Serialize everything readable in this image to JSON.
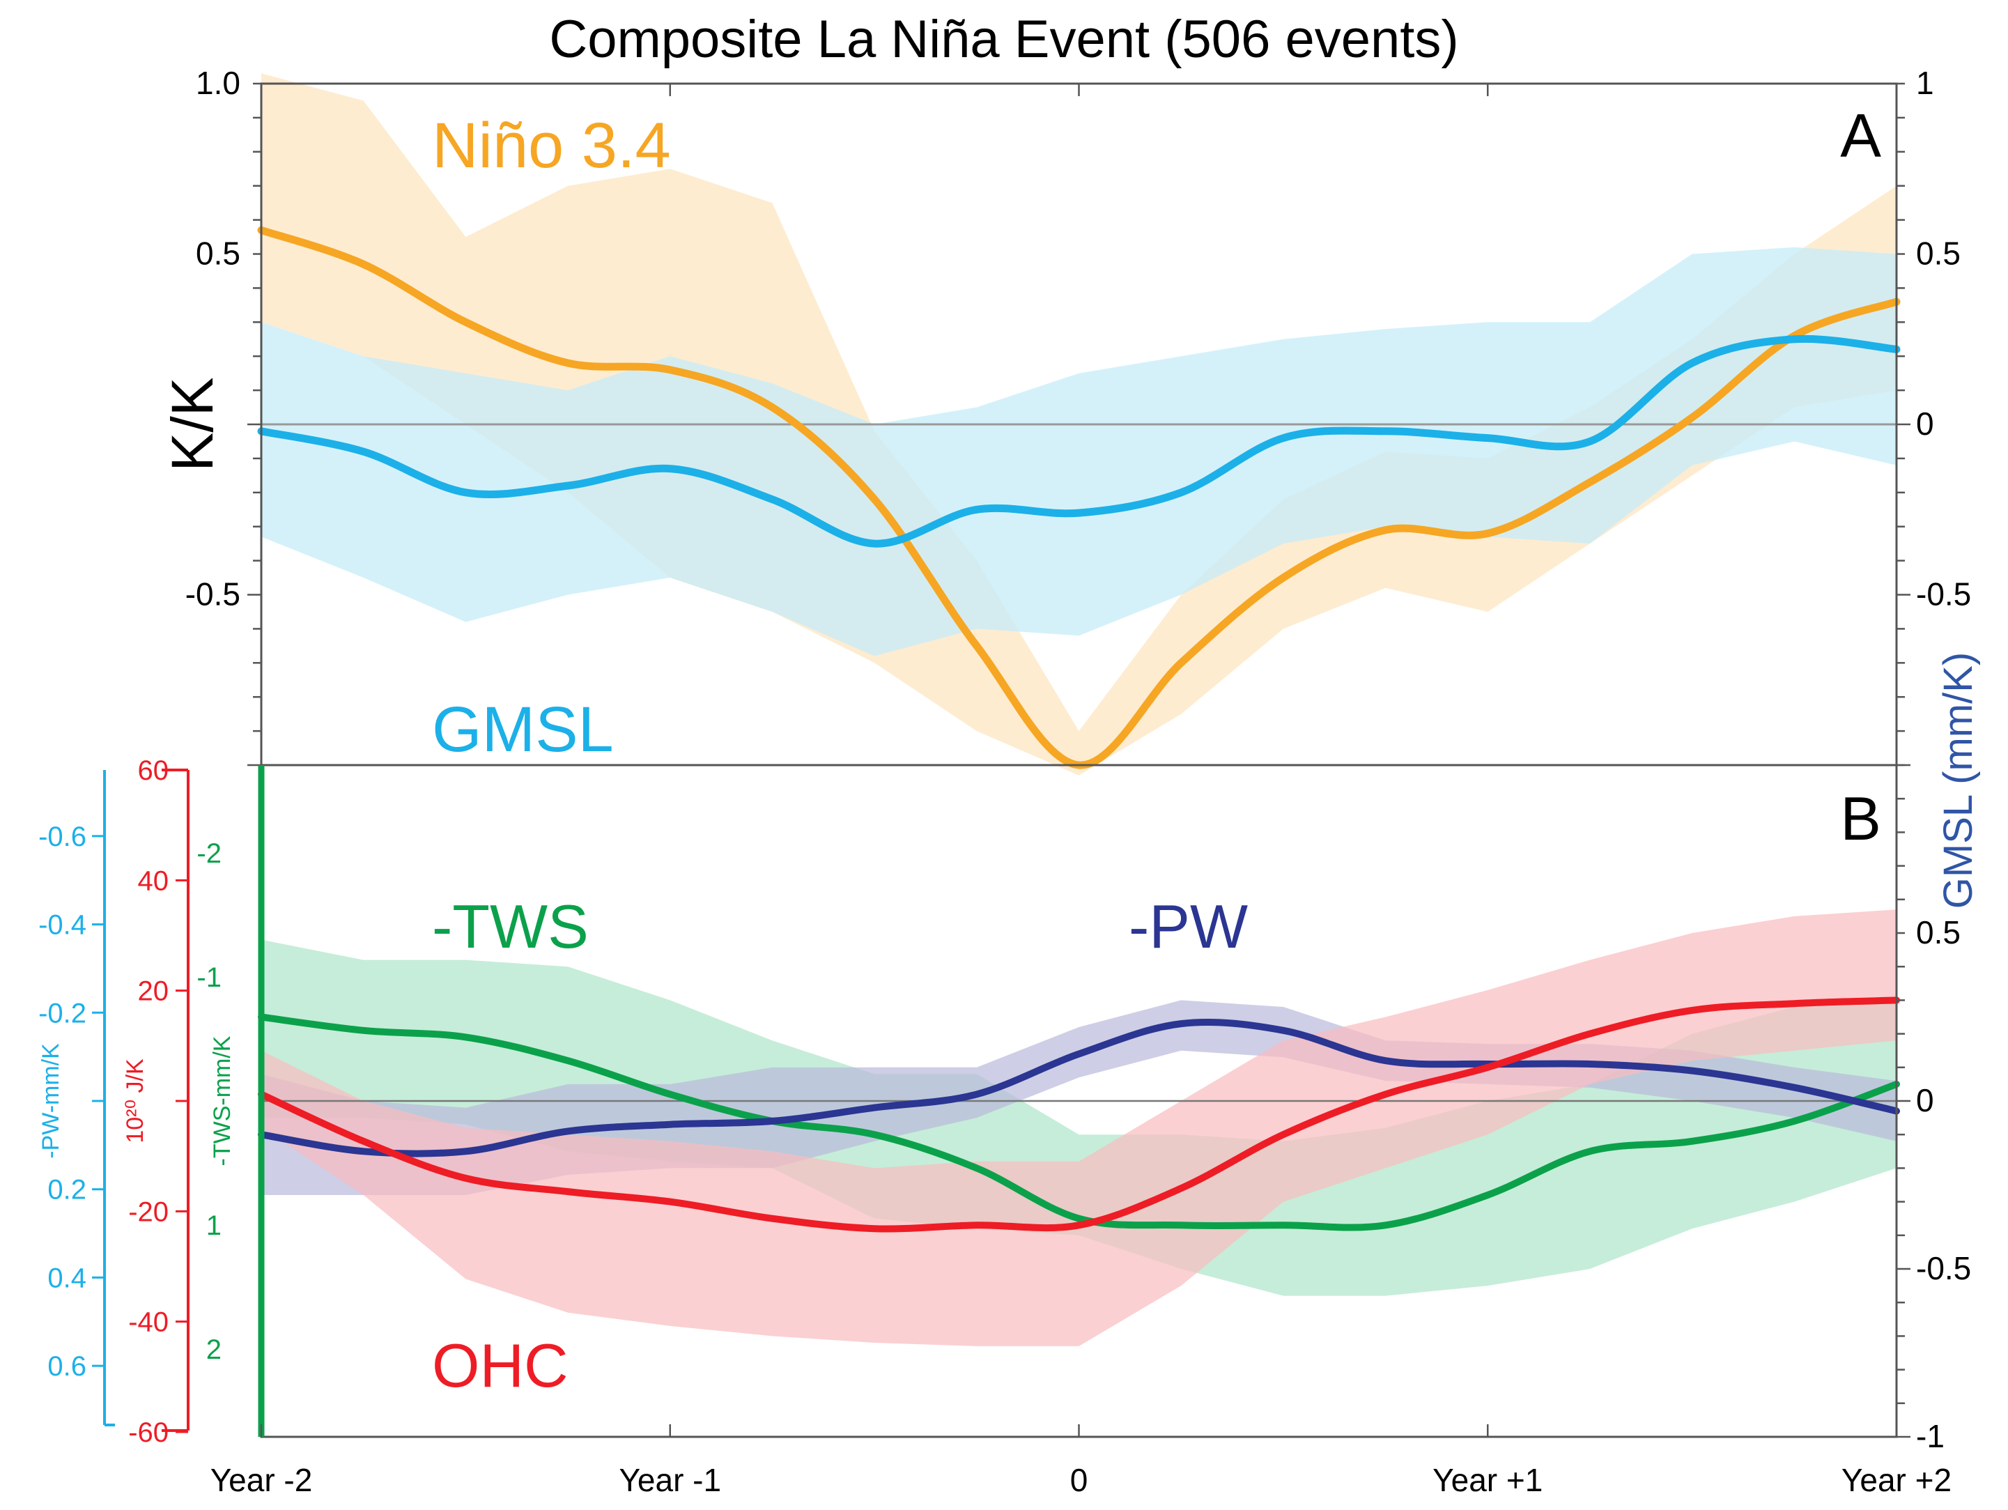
{
  "title": "Composite La Niña Event (506 events)",
  "x_ticks": [
    "Year -2",
    "Year -1",
    "0",
    "Year +1",
    "Year +2"
  ],
  "chart_data": [
    {
      "type": "line",
      "panel": "A",
      "panel_label": "A",
      "left_axis": {
        "label": "K/K",
        "range": [
          -1.0,
          1.0
        ],
        "tick_labels": [
          "1.0",
          "0.5",
          "",
          "-0.5"
        ],
        "tick_values": [
          1.0,
          0.5,
          0,
          -0.5
        ]
      },
      "right_axis": {
        "label": "GMSL  (mm/K)",
        "range": [
          -1.0,
          1.0
        ],
        "tick_labels": [
          "1",
          "0.5",
          "0",
          "-0.5"
        ],
        "tick_values": [
          1,
          0.5,
          0,
          -0.5
        ],
        "color": "#2f55a6"
      },
      "x": [
        -2,
        -1.75,
        -1.5,
        -1.25,
        -1,
        -0.75,
        -0.5,
        -0.25,
        0,
        0.25,
        0.5,
        0.75,
        1,
        1.25,
        1.5,
        1.75,
        2
      ],
      "series": [
        {
          "name": "Niño 3.4",
          "label": "Niño 3.4",
          "color": "#f6a623",
          "band_color": "#fde5c2",
          "values": [
            0.57,
            0.47,
            0.3,
            0.18,
            0.16,
            0.05,
            -0.22,
            -0.65,
            -1.0,
            -0.7,
            -0.45,
            -0.31,
            -0.32,
            -0.17,
            0.02,
            0.26,
            0.36
          ],
          "lower": [
            0.3,
            0.2,
            0.0,
            -0.2,
            -0.45,
            -0.55,
            -0.7,
            -0.9,
            -1.03,
            -0.85,
            -0.6,
            -0.48,
            -0.55,
            -0.35,
            -0.15,
            0.05,
            0.1
          ],
          "upper": [
            1.03,
            0.95,
            0.55,
            0.7,
            0.75,
            0.65,
            -0.02,
            -0.4,
            -0.9,
            -0.5,
            -0.22,
            -0.08,
            -0.1,
            0.05,
            0.25,
            0.5,
            0.7
          ]
        },
        {
          "name": "GMSL",
          "label": "GMSL",
          "color": "#1cb0e8",
          "band_color": "#c6ecf8",
          "values": [
            -0.02,
            -0.08,
            -0.2,
            -0.18,
            -0.13,
            -0.22,
            -0.35,
            -0.25,
            -0.26,
            -0.2,
            -0.04,
            -0.02,
            -0.04,
            -0.05,
            0.18,
            0.25,
            0.22
          ],
          "lower": [
            -0.33,
            -0.45,
            -0.58,
            -0.5,
            -0.45,
            -0.55,
            -0.68,
            -0.6,
            -0.62,
            -0.5,
            -0.35,
            -0.3,
            -0.33,
            -0.35,
            -0.12,
            -0.05,
            -0.12
          ],
          "upper": [
            0.3,
            0.2,
            0.15,
            0.1,
            0.2,
            0.12,
            0.0,
            0.05,
            0.15,
            0.2,
            0.25,
            0.28,
            0.3,
            0.3,
            0.5,
            0.52,
            0.5
          ]
        }
      ]
    },
    {
      "type": "line",
      "panel": "B",
      "panel_label": "B",
      "right_axis": {
        "label": "GMSL  (mm/K)",
        "range": [
          -1.0,
          1.0
        ],
        "tick_labels": [
          "0.5",
          "0",
          "-0.5",
          "-1"
        ],
        "tick_values": [
          0.5,
          0,
          -0.5,
          -1
        ]
      },
      "pw_axis": {
        "label": "-PW-mm/K",
        "tick_labels": [
          "-0.6",
          "-0.4",
          "-0.2",
          "0.2",
          "0.4",
          "0.6"
        ],
        "tick_values": [
          -0.6,
          -0.4,
          -0.2,
          0.2,
          0.4,
          0.6
        ],
        "range": [
          -0.7,
          0.7
        ],
        "color": "#1cb0e8"
      },
      "ohc_axis": {
        "label": "10²⁰ J/K",
        "tick_labels": [
          "60",
          "40",
          "20",
          "-20",
          "-40",
          "-60"
        ],
        "tick_values": [
          60,
          40,
          20,
          -20,
          -40,
          -60
        ],
        "range": [
          -60,
          60
        ],
        "color": "#ee1c25"
      },
      "tws_axis": {
        "label": "-TWS-mm/K",
        "tick_labels": [
          "-2",
          "-1",
          "1",
          "2"
        ],
        "tick_values": [
          -2,
          -1,
          1,
          2
        ],
        "range": [
          -2.7,
          2.7
        ],
        "color": "#0ba14b"
      },
      "x": [
        -2,
        -1.75,
        -1.5,
        -1.25,
        -1,
        -0.75,
        -0.5,
        -0.25,
        0,
        0.25,
        0.5,
        0.75,
        1,
        1.25,
        1.5,
        1.75,
        2
      ],
      "series": [
        {
          "name": "-TWS",
          "label": "-TWS",
          "color": "#0ba14b",
          "band_color": "#aee6c9",
          "values": [
            0.25,
            0.21,
            0.19,
            0.12,
            0.02,
            -0.06,
            -0.1,
            -0.2,
            -0.35,
            -0.37,
            -0.37,
            -0.37,
            -0.28,
            -0.15,
            -0.12,
            -0.06,
            0.05
          ],
          "lower": [
            -0.05,
            -0.05,
            -0.07,
            -0.15,
            -0.18,
            -0.2,
            -0.35,
            -0.38,
            -0.4,
            -0.5,
            -0.58,
            -0.58,
            -0.55,
            -0.5,
            -0.38,
            -0.3,
            -0.2
          ],
          "upper": [
            0.48,
            0.42,
            0.42,
            0.4,
            0.3,
            0.18,
            0.08,
            0.08,
            -0.1,
            -0.1,
            -0.12,
            -0.08,
            0.0,
            0.05,
            0.2,
            0.28,
            0.3
          ]
        },
        {
          "name": "-PW",
          "label": "-PW",
          "color": "#2b3592",
          "band_color": "#b9b9dc",
          "values": [
            -0.1,
            -0.15,
            -0.15,
            -0.09,
            -0.07,
            -0.06,
            -0.02,
            0.02,
            0.14,
            0.23,
            0.21,
            0.12,
            0.11,
            0.11,
            0.09,
            0.04,
            -0.03
          ],
          "lower": [
            -0.28,
            -0.28,
            -0.28,
            -0.22,
            -0.2,
            -0.2,
            -0.12,
            -0.05,
            0.07,
            0.15,
            0.13,
            0.06,
            0.05,
            0.04,
            0.0,
            -0.05,
            -0.12
          ],
          "upper": [
            0.08,
            0.0,
            -0.02,
            0.05,
            0.05,
            0.1,
            0.1,
            0.1,
            0.22,
            0.3,
            0.28,
            0.18,
            0.17,
            0.17,
            0.15,
            0.1,
            0.06
          ]
        },
        {
          "name": "OHC",
          "label": "OHC",
          "color": "#ee1c25",
          "band_color": "#f9bcbf",
          "values": [
            0.02,
            -0.12,
            -0.23,
            -0.27,
            -0.3,
            -0.35,
            -0.38,
            -0.37,
            -0.37,
            -0.26,
            -0.1,
            0.02,
            0.1,
            0.2,
            0.27,
            0.29,
            0.3
          ],
          "lower": [
            -0.08,
            -0.28,
            -0.53,
            -0.63,
            -0.67,
            -0.7,
            -0.72,
            -0.73,
            -0.73,
            -0.55,
            -0.3,
            -0.2,
            -0.1,
            0.05,
            0.12,
            0.15,
            0.18
          ],
          "upper": [
            0.15,
            0.0,
            -0.08,
            -0.1,
            -0.12,
            -0.15,
            -0.2,
            -0.18,
            -0.18,
            0.0,
            0.18,
            0.25,
            0.33,
            0.42,
            0.5,
            0.55,
            0.57
          ]
        }
      ]
    }
  ]
}
